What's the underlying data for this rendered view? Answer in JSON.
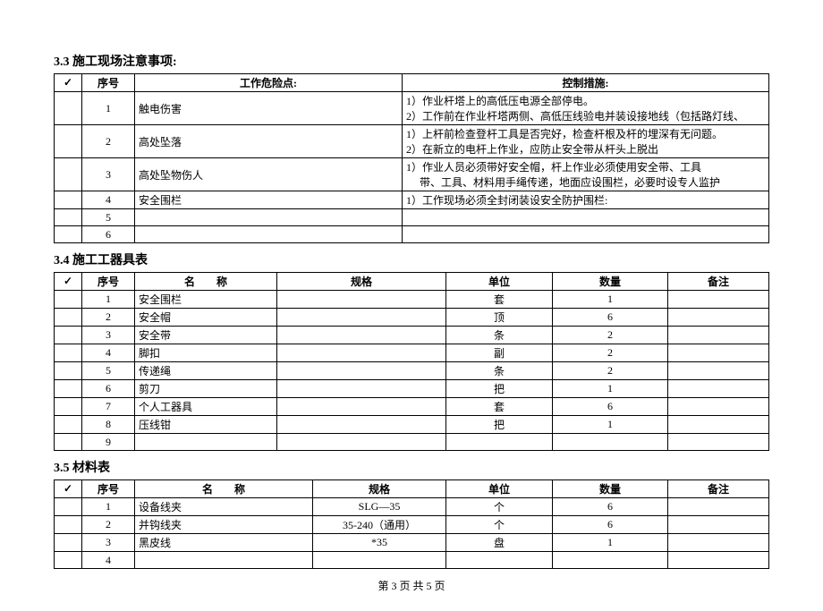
{
  "section33": {
    "title": "3.3 施工现场注意事项:",
    "headers": {
      "check": "✓",
      "seq": "序号",
      "risk": "工作危险点:",
      "measure": "控制措施:"
    },
    "rows": [
      {
        "seq": "1",
        "risk": "触电伤害",
        "measure": "1）作业杆塔上的高低压电源全部停电。\n2）工作前在作业杆塔两侧、高低压线验电并装设接地线（包括路灯线、"
      },
      {
        "seq": "2",
        "risk": "高处坠落",
        "measure": "1）上杆前检查登杆工具是否完好，检查杆根及杆的埋深有无问题。\n2）在新立的电杆上作业，应防止安全带从杆头上脱出"
      },
      {
        "seq": "3",
        "risk": "高处坠物伤人",
        "measure": "1）作业人员必须带好安全帽，杆上作业必须使用安全带、工具\n     带、工具、材料用手绳传递，地面应设围栏，必要时设专人监护"
      },
      {
        "seq": "4",
        "risk": "安全围栏",
        "measure": "1）工作现场必须全封闭装设安全防护围栏:"
      },
      {
        "seq": "5",
        "risk": "",
        "measure": ""
      },
      {
        "seq": "6",
        "risk": "",
        "measure": ""
      }
    ]
  },
  "section34": {
    "title": "3.4 施工工器具表",
    "headers": {
      "check": "✓",
      "seq": "序号",
      "name": "名　　称",
      "spec": "规格",
      "unit": "单位",
      "qty": "数量",
      "remark": "备注"
    },
    "rows": [
      {
        "seq": "1",
        "name": "安全围栏",
        "spec": "",
        "unit": "套",
        "qty": "1",
        "remark": ""
      },
      {
        "seq": "2",
        "name": "安全帽",
        "spec": "",
        "unit": "顶",
        "qty": "6",
        "remark": ""
      },
      {
        "seq": "3",
        "name": "安全带",
        "spec": "",
        "unit": "条",
        "qty": "2",
        "remark": ""
      },
      {
        "seq": "4",
        "name": "脚扣",
        "spec": "",
        "unit": "副",
        "qty": "2",
        "remark": ""
      },
      {
        "seq": "5",
        "name": "传递绳",
        "spec": "",
        "unit": "条",
        "qty": "2",
        "remark": ""
      },
      {
        "seq": "6",
        "name": "剪刀",
        "spec": "",
        "unit": "把",
        "qty": "1",
        "remark": ""
      },
      {
        "seq": "7",
        "name": "个人工器具",
        "spec": "",
        "unit": "套",
        "qty": "6",
        "remark": ""
      },
      {
        "seq": "8",
        "name": "压线钳",
        "spec": "",
        "unit": "把",
        "qty": "1",
        "remark": ""
      },
      {
        "seq": "9",
        "name": "",
        "spec": "",
        "unit": "",
        "qty": "",
        "remark": ""
      }
    ]
  },
  "section35": {
    "title": "3.5 材料表",
    "headers": {
      "check": "✓",
      "seq": "序号",
      "name": "名　　称",
      "spec": "规格",
      "unit": "单位",
      "qty": "数量",
      "remark": "备注"
    },
    "rows": [
      {
        "seq": "1",
        "name": "设备线夹",
        "spec": "SLG—35",
        "unit": "个",
        "qty": "6",
        "remark": ""
      },
      {
        "seq": "2",
        "name": "并钩线夹",
        "spec": "35-240（通用）",
        "unit": "个",
        "qty": "6",
        "remark": ""
      },
      {
        "seq": "3",
        "name": "黑皮线",
        "spec": "*35",
        "unit": "盘",
        "qty": "1",
        "remark": ""
      },
      {
        "seq": "4",
        "name": "",
        "spec": "",
        "unit": "",
        "qty": "",
        "remark": ""
      }
    ]
  },
  "footer": "第 3 页 共 5 页"
}
